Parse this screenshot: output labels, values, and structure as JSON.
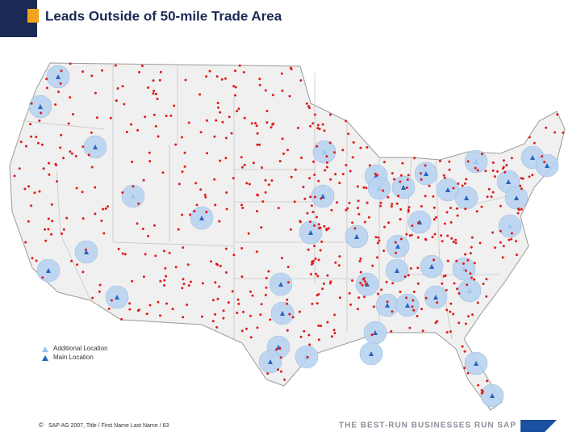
{
  "header": {
    "title": "Leads Outside of 50-mile Trade Area"
  },
  "legend": {
    "items": [
      "Additional Location",
      "Main Location"
    ]
  },
  "footer": {
    "copyright": "©",
    "text": "SAP AG 2007, Title / First Name Last Name / 63",
    "tagline": "THE BEST-RUN BUSINESSES RUN SAP"
  }
}
